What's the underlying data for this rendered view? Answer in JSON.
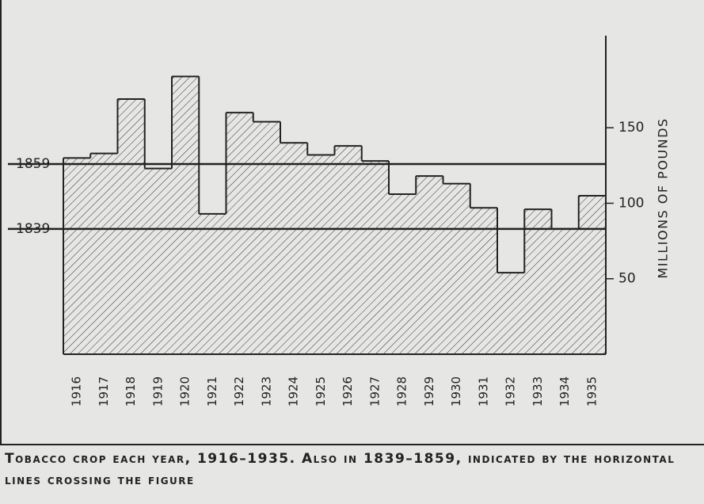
{
  "chart_data": {
    "type": "bar",
    "caption": "Tobacco crop each year, 1916–1935. Also in 1839–1859, indicated by the horizontal lines crossing the figure",
    "y_axis_label": "MILLIONS OF POUNDS",
    "categories": [
      "1916",
      "1917",
      "1918",
      "1919",
      "1920",
      "1921",
      "1922",
      "1923",
      "1924",
      "1925",
      "1926",
      "1927",
      "1928",
      "1929",
      "1930",
      "1931",
      "1932",
      "1933",
      "1934",
      "1935"
    ],
    "values": [
      130,
      133,
      169,
      123,
      184,
      93,
      160,
      154,
      140,
      132,
      138,
      128,
      106,
      118,
      113,
      97,
      54,
      96,
      83,
      105
    ],
    "ylim": [
      0,
      211
    ],
    "yticks": [
      50,
      100,
      150
    ],
    "reference_lines": [
      {
        "label": "1859",
        "value": 126
      },
      {
        "label": "1839",
        "value": 83
      }
    ],
    "color": "#222222"
  }
}
